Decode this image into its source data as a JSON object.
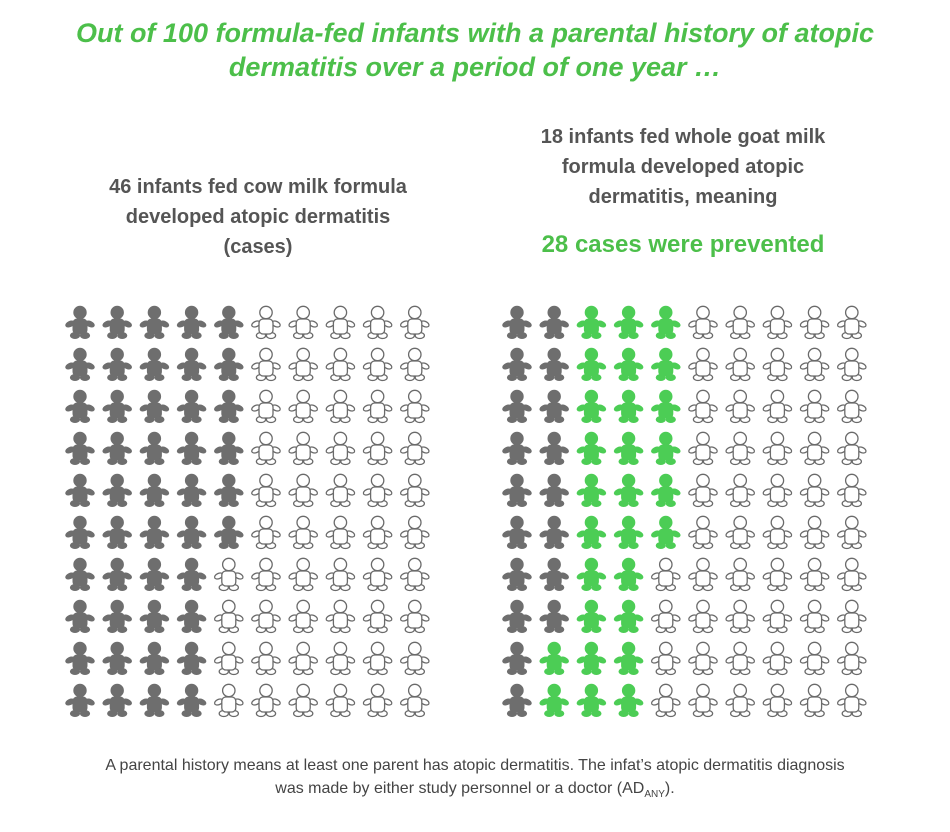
{
  "chart_data": {
    "type": "pictogram",
    "title": "Out of 100 formula-fed infants with a parental history of atopic dermatitis over a period of one year …",
    "total": 100,
    "panels": [
      {
        "text": "46 infants fed cow milk formula developed atopic dermatitis (cases)",
        "series": [
          {
            "color": "#6e6e6e",
            "value": 46
          }
        ]
      },
      {
        "text": "18 infants fed whole goat milk formula developed atopic dermatitis, meaning",
        "highlight": "28 cases were prevented",
        "series": [
          {
            "color": "#6e6e6e",
            "value": 18
          },
          {
            "color": "#4ccd55",
            "value": 28
          }
        ]
      }
    ],
    "footnote": {
      "text": "A parental history means at least one parent has atopic dermatitis. The infat’s atopic dermatitis diagnosis was made by either study personnel or a doctor (AD",
      "subscript": "ANY",
      "end": ")."
    }
  }
}
